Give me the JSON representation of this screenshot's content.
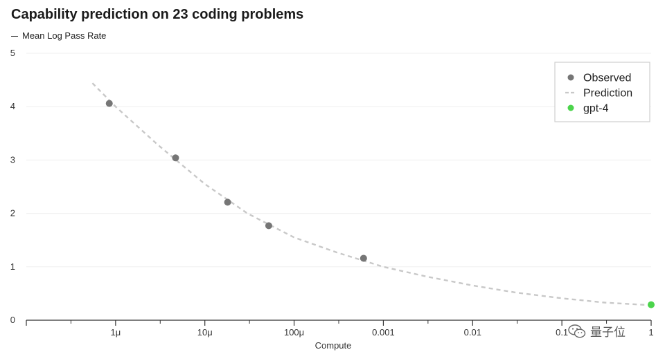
{
  "chart_data": {
    "type": "scatter",
    "title": "Capability prediction on 23 coding problems",
    "ylabel": "Mean Log Pass Rate",
    "xlabel": "Compute",
    "x_scale": "log",
    "xlim": [
      1e-07,
      1
    ],
    "ylim": [
      0,
      5
    ],
    "y_ticks": [
      0,
      1,
      2,
      3,
      4,
      5
    ],
    "x_ticks": [
      {
        "value": 1e-06,
        "label": "1μ"
      },
      {
        "value": 1e-05,
        "label": "10μ"
      },
      {
        "value": 0.0001,
        "label": "100μ"
      },
      {
        "value": 0.001,
        "label": "0.001"
      },
      {
        "value": 0.01,
        "label": "0.01"
      },
      {
        "value": 0.1,
        "label": "0.1"
      },
      {
        "value": 1,
        "label": "1"
      }
    ],
    "grid": "horizontal",
    "legend_position": "top-right",
    "series": [
      {
        "name": "Observed",
        "kind": "points",
        "color": "#767676",
        "points": [
          {
            "x": 8.5e-07,
            "y": 4.06
          },
          {
            "x": 4.7e-06,
            "y": 3.04
          },
          {
            "x": 1.8e-05,
            "y": 2.21
          },
          {
            "x": 5.2e-05,
            "y": 1.77
          },
          {
            "x": 0.0006,
            "y": 1.16
          }
        ]
      },
      {
        "name": "Prediction",
        "kind": "dashed-line",
        "color": "#c8c8c8",
        "points": [
          {
            "x": 5.5e-07,
            "y": 4.44
          },
          {
            "x": 1e-06,
            "y": 4.0
          },
          {
            "x": 3e-06,
            "y": 3.28
          },
          {
            "x": 1e-05,
            "y": 2.55
          },
          {
            "x": 3e-05,
            "y": 2.0
          },
          {
            "x": 0.0001,
            "y": 1.55
          },
          {
            "x": 0.0003,
            "y": 1.27
          },
          {
            "x": 0.001,
            "y": 1.0
          },
          {
            "x": 0.003,
            "y": 0.82
          },
          {
            "x": 0.01,
            "y": 0.65
          },
          {
            "x": 0.03,
            "y": 0.52
          },
          {
            "x": 0.1,
            "y": 0.41
          },
          {
            "x": 0.3,
            "y": 0.33
          },
          {
            "x": 1,
            "y": 0.28
          }
        ]
      },
      {
        "name": "gpt-4",
        "kind": "points",
        "color": "#4cd44c",
        "points": [
          {
            "x": 1,
            "y": 0.29
          }
        ]
      }
    ]
  },
  "watermark": {
    "text": "量子位",
    "icon": "wechat-icon"
  }
}
